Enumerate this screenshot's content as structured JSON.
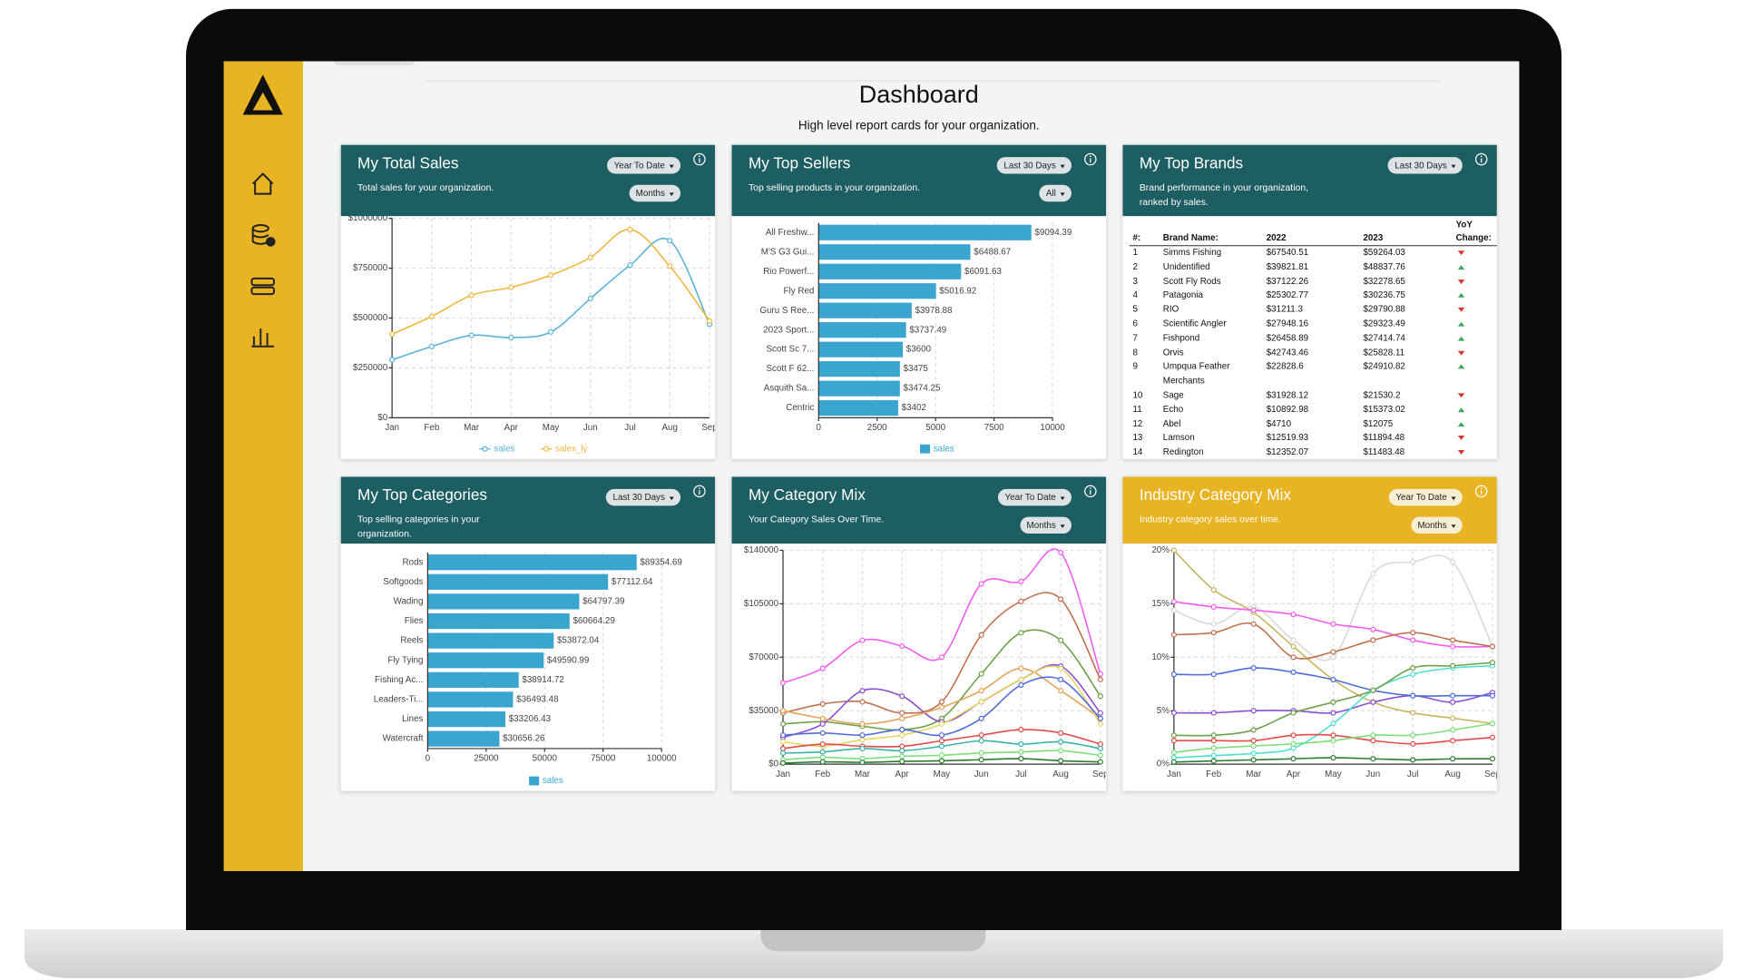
{
  "header": {
    "title": "Dashboard",
    "subtitle": "High level report cards for your organization."
  },
  "cards": [
    {
      "title": "My Total Sales",
      "description": "Total sales for your organization.",
      "controls": [
        "Year To Date",
        "Months"
      ],
      "color": "#1d5e63",
      "chart_data": {
        "type": "line",
        "categories": [
          "Jan",
          "Feb",
          "Mar",
          "Apr",
          "May",
          "Jun",
          "Jul",
          "Aug",
          "Sep"
        ],
        "series": [
          {
            "name": "sales",
            "color": "#5ab4d8",
            "values": [
              290000,
              357000,
              413000,
              402000,
              430000,
              598000,
              765000,
              888000,
              469000
            ]
          },
          {
            "name": "sales_ly",
            "color": "#f0b73e",
            "values": [
              419000,
              508000,
              614000,
              654000,
              715000,
              804000,
              944000,
              760000,
              486000
            ]
          }
        ],
        "ylim": [
          0,
          1000000
        ],
        "yticks": [
          {
            "value": 0,
            "label": "$0"
          },
          {
            "value": 250000,
            "label": "$250000"
          },
          {
            "value": 500000,
            "label": "$500000"
          },
          {
            "value": 750000,
            "label": "$750000"
          },
          {
            "value": 1000000,
            "label": "$1000000"
          }
        ],
        "grid": true
      }
    },
    {
      "title": "My Top Sellers",
      "description": "Top selling products in your organization.",
      "controls": [
        "Last 30 Days",
        "All"
      ],
      "color": "#1d5e63",
      "chart_data": {
        "type": "hbar",
        "categories": [
          "All Freshw...",
          "M'S G3 Gui...",
          "Rio Powerf...",
          "Fly Red",
          "Guru S Ree...",
          "2023 Sport...",
          "Scott Sc 7...",
          "Scott F 62...",
          "Asquith Sa...",
          "Centric"
        ],
        "series": [
          {
            "name": "sales",
            "color": "#3aa6d0",
            "values": [
              9094.39,
              6488.67,
              6091.63,
              5016.92,
              3978.88,
              3737.49,
              3600,
              3475,
              3474.25,
              3402
            ],
            "value_labels": [
              "$9094.39",
              "$6488.67",
              "$6091.63",
              "$5016.92",
              "$3978.88",
              "$3737.49",
              "$3600",
              "$3475",
              "$3474.25",
              "$3402"
            ]
          }
        ],
        "xlim": [
          0,
          10000
        ],
        "xticks": [
          0,
          2500,
          5000,
          7500,
          10000
        ],
        "grid": true
      }
    },
    {
      "title": "My Top Brands",
      "description": "Brand performance in your organization, ranked by sales.",
      "controls": [
        "Last 30 Days"
      ],
      "color": "#1d5e63",
      "table": {
        "columns": [
          "#:",
          "Brand Name:",
          "2022",
          "2023",
          "YoY Change:"
        ],
        "rows": [
          [
            1,
            "Simms Fishing",
            "$67540.51",
            "$59264.03"
          ],
          [
            2,
            "Unidentified",
            "$39821.81",
            "$48837.76"
          ],
          [
            3,
            "Scott Fly Rods",
            "$37122.26",
            "$32278.65"
          ],
          [
            4,
            "Patagonia",
            "$25302.77",
            "$30236.75"
          ],
          [
            5,
            "RIO",
            "$31211.3",
            "$29790.88"
          ],
          [
            6,
            "Scientific Angler",
            "$27948.16",
            "$29323.49"
          ],
          [
            7,
            "Fishpond",
            "$26458.89",
            "$27414.74"
          ],
          [
            8,
            "Orvis",
            "$42743.46",
            "$25828.11"
          ],
          [
            9,
            "Umpqua Feather Merchants",
            "$22828.6",
            "$24910.82"
          ],
          [
            10,
            "Sage",
            "$31928.12",
            "$21530.2"
          ],
          [
            11,
            "Echo",
            "$10892.98",
            "$15373.02"
          ],
          [
            12,
            "Abel",
            "$4710",
            "$12075"
          ],
          [
            13,
            "Lamson",
            "$12519.93",
            "$11894.48"
          ],
          [
            14,
            "Redington",
            "$12352.07",
            "$11483.48"
          ]
        ],
        "trend": [
          "down",
          "up",
          "down",
          "up",
          "down",
          "up",
          "up",
          "down",
          "up",
          "down",
          "up",
          "up",
          "down",
          "down"
        ],
        "trend_colors": {
          "up": "#3aa85a",
          "down": "#d9342b"
        }
      }
    },
    {
      "title": "My Top Categories",
      "description": "Top selling categories in your organization.",
      "controls": [
        "Last 30 Days"
      ],
      "color": "#1d5e63",
      "chart_data": {
        "type": "hbar",
        "categories": [
          "Rods",
          "Softgoods",
          "Wading",
          "Flies",
          "Reels",
          "Fly Tying",
          "Fishing Ac...",
          "Leaders-Ti...",
          "Lines",
          "Watercraft"
        ],
        "series": [
          {
            "name": "sales",
            "color": "#3aa6d0",
            "values": [
              89354.69,
              77112.64,
              64797.39,
              60664.29,
              53872.04,
              49590.99,
              38914.72,
              36493.48,
              33206.43,
              30656.26
            ],
            "value_labels": [
              "$89354.69",
              "$77112.64",
              "$64797.39",
              "$60664.29",
              "$53872.04",
              "$49590.99",
              "$38914.72",
              "$36493.48",
              "$33206.43",
              "$30656.26"
            ]
          }
        ],
        "xlim": [
          0,
          100000
        ],
        "xticks": [
          0,
          25000,
          50000,
          75000,
          100000
        ],
        "grid": true
      }
    },
    {
      "title": "My Category Mix",
      "description": "Your Category Sales Over Time.",
      "controls": [
        "Year To Date",
        "Months"
      ],
      "color": "#1d5e63",
      "chart_data": {
        "type": "line",
        "categories": [
          "Jan",
          "Feb",
          "Mar",
          "Apr",
          "May",
          "Jun",
          "Jul",
          "Aug",
          "Sep"
        ],
        "series": [
          {
            "color": "#f25cf0",
            "values": [
              53200,
              62700,
              81000,
              77300,
              70000,
              118000,
              119600,
              138500,
              59000
            ]
          },
          {
            "color": "#c0714f",
            "values": [
              33500,
              39400,
              40800,
              33500,
              40800,
              84600,
              106500,
              108000,
              55400
            ]
          },
          {
            "color": "#6fa04a",
            "values": [
              26300,
              27700,
              24800,
              22600,
              29900,
              59100,
              86000,
              81000,
              44500
            ]
          },
          {
            "color": "#8a4fcf",
            "values": [
              17500,
              26300,
              48100,
              44500,
              27700,
              40800,
              55400,
              64200,
              33500
            ]
          },
          {
            "color": "#e4a35a",
            "values": [
              35000,
              29900,
              26300,
              29900,
              37200,
              48100,
              62700,
              48100,
              29900
            ]
          },
          {
            "color": "#e9d563",
            "values": [
              14600,
              11700,
              16000,
              19000,
              26300,
              40800,
              55400,
              62700,
              26300
            ]
          },
          {
            "color": "#4f6bd8",
            "values": [
              19000,
              20400,
              19000,
              22600,
              19000,
              29900,
              51800,
              55400,
              29900
            ]
          },
          {
            "color": "#e34b4b",
            "values": [
              10200,
              13100,
              11700,
              11700,
              15300,
              19000,
              22600,
              20400,
              13100
            ]
          },
          {
            "color": "#3bb3a8",
            "values": [
              7300,
              8000,
              10200,
              8800,
              11700,
              15300,
              13100,
              14600,
              10200
            ]
          },
          {
            "color": "#7be07b",
            "values": [
              2900,
              4400,
              3600,
              5100,
              5800,
              7300,
              8000,
              8800,
              5800
            ]
          },
          {
            "color": "#2e7d32",
            "values": [
              700,
              1500,
              1200,
              1800,
              2200,
              2900,
              3600,
              2200,
              1500
            ]
          }
        ],
        "ylim": [
          0,
          140000
        ],
        "yticks": [
          {
            "value": 0,
            "label": "$0"
          },
          {
            "value": 35000,
            "label": "$35000"
          },
          {
            "value": 70000,
            "label": "$70000"
          },
          {
            "value": 105000,
            "label": "$105000"
          },
          {
            "value": 140000,
            "label": "$140000"
          }
        ],
        "grid": true
      }
    },
    {
      "title": "Industry Category Mix",
      "description": "Industry category sales over time.",
      "controls": [
        "Year To Date",
        "Months"
      ],
      "color": "#e8b423",
      "chart_data": {
        "type": "line",
        "categories": [
          "Jan",
          "Feb",
          "Mar",
          "Apr",
          "May",
          "Jun",
          "Jul",
          "Aug",
          "Sep"
        ],
        "series": [
          {
            "color": "#d9d9d9",
            "values": [
              14.4,
              13.1,
              14.7,
              11.6,
              10,
              17.8,
              18.9,
              18.9,
              11
            ]
          },
          {
            "color": "#c8b560",
            "values": [
              20,
              16.3,
              14.2,
              11,
              7.9,
              5.8,
              4.8,
              4.3,
              3.8
            ]
          },
          {
            "color": "#f25cf0",
            "values": [
              15.2,
              14.7,
              14.4,
              14,
              13.1,
              12.6,
              11.6,
              11,
              11
            ]
          },
          {
            "color": "#c0714f",
            "values": [
              12.1,
              12.3,
              13.1,
              10,
              10.5,
              11.6,
              12.3,
              11.6,
              11
            ]
          },
          {
            "color": "#8a4fcf",
            "values": [
              4.8,
              4.8,
              5,
              5,
              4.8,
              5.8,
              6.4,
              5.8,
              6.7
            ]
          },
          {
            "color": "#4f6bd8",
            "values": [
              8.4,
              8.4,
              9,
              8.6,
              7.9,
              6.9,
              6.4,
              6.4,
              6.4
            ]
          },
          {
            "color": "#4fe0d0",
            "values": [
              0.6,
              0.8,
              1,
              1.5,
              3.8,
              6.9,
              8.4,
              9,
              9.2
            ]
          },
          {
            "color": "#6fa04a",
            "values": [
              2.7,
              2.7,
              3.2,
              4.8,
              5.8,
              6.9,
              9,
              9.2,
              9.5
            ]
          },
          {
            "color": "#e34b4b",
            "values": [
              2.2,
              2.2,
              2.2,
              2.7,
              2.7,
              2.2,
              1.9,
              2.2,
              2.5
            ]
          },
          {
            "color": "#7be07b",
            "values": [
              1.1,
              1.5,
              1.7,
              1.9,
              2.2,
              2.7,
              2.7,
              3.2,
              3.8
            ]
          },
          {
            "color": "#2e7d32",
            "values": [
              0.2,
              0.3,
              0.4,
              0.5,
              0.6,
              0.5,
              0.4,
              0.5,
              0.5
            ]
          }
        ],
        "ylim": [
          0,
          20
        ],
        "yticks": [
          {
            "value": 0,
            "label": "0%"
          },
          {
            "value": 5,
            "label": "5%"
          },
          {
            "value": 10,
            "label": "10%"
          },
          {
            "value": 15,
            "label": "15%"
          },
          {
            "value": 20,
            "label": "20%"
          }
        ],
        "grid": true
      }
    }
  ]
}
